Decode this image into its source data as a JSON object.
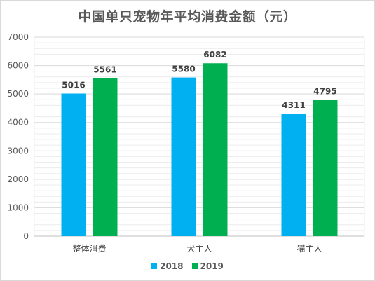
{
  "chart_data": {
    "type": "bar",
    "title": "中国单只宠物年平均消费金额（元）",
    "categories": [
      "整体消费",
      "犬主人",
      "猫主人"
    ],
    "series": [
      {
        "name": "2018",
        "values": [
          5016,
          5580,
          4311
        ],
        "color": "#00b0f0"
      },
      {
        "name": "2019",
        "values": [
          5561,
          6082,
          4795
        ],
        "color": "#00b050"
      }
    ],
    "ylim": [
      0,
      7000
    ],
    "yticks": [
      0,
      1000,
      2000,
      3000,
      4000,
      5000,
      6000,
      7000
    ],
    "grid": true,
    "legend_position": "bottom"
  }
}
